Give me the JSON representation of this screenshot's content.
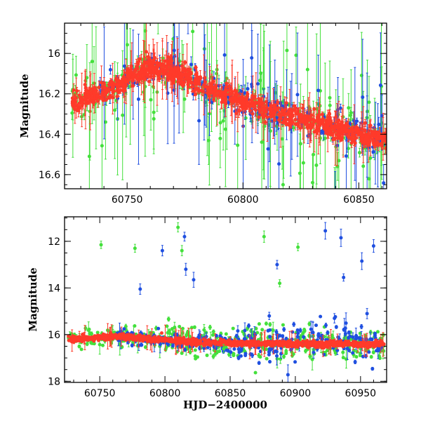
{
  "chart_data": [
    {
      "type": "scatter",
      "panel": "top",
      "xlabel": "",
      "ylabel": "Magnitude",
      "xlim": [
        60723,
        60862
      ],
      "ylim": [
        16.67,
        15.85
      ],
      "y_inverted": true,
      "x_ticks": [
        60750,
        60800,
        60850
      ],
      "x_tick_labels": [
        "60750",
        "60800",
        "60850"
      ],
      "y_ticks": [
        16.0,
        16.2,
        16.4,
        16.6
      ],
      "y_tick_labels": [
        "16",
        "16.2",
        "16.4",
        "16.6"
      ],
      "series": [
        {
          "name": "red",
          "color": "#ff3a2a",
          "description": "dense error-bar light curve",
          "trend": [
            [
              60726,
              16.25
            ],
            [
              60740,
              16.19
            ],
            [
              60750,
              16.13
            ],
            [
              60755,
              16.09
            ],
            [
              60762,
              16.06
            ],
            [
              60770,
              16.09
            ],
            [
              60780,
              16.15
            ],
            [
              60790,
              16.2
            ],
            [
              60800,
              16.24
            ],
            [
              60810,
              16.28
            ],
            [
              60820,
              16.31
            ],
            [
              60830,
              16.34
            ],
            [
              60840,
              16.37
            ],
            [
              60850,
              16.4
            ],
            [
              60862,
              16.43
            ]
          ]
        },
        {
          "name": "green",
          "color": "#44e03c",
          "description": "scattered points with large error bars",
          "trend": [
            [
              60726,
              16.24
            ],
            [
              60750,
              16.12
            ],
            [
              60762,
              16.06
            ],
            [
              60780,
              16.14
            ],
            [
              60800,
              16.23
            ],
            [
              60820,
              16.3
            ],
            [
              60840,
              16.36
            ],
            [
              60862,
              16.42
            ]
          ]
        },
        {
          "name": "blue",
          "color": "#1f4fe0",
          "description": "scattered points with error bars",
          "trend": [
            [
              60726,
              16.24
            ],
            [
              60750,
              16.12
            ],
            [
              60762,
              16.06
            ],
            [
              60780,
              16.14
            ],
            [
              60800,
              16.23
            ],
            [
              60820,
              16.3
            ],
            [
              60840,
              16.36
            ],
            [
              60862,
              16.42
            ]
          ]
        }
      ]
    },
    {
      "type": "scatter",
      "panel": "bottom",
      "xlabel": "HJD−2400000",
      "ylabel": "Magnitude",
      "xlim": [
        60723,
        60970
      ],
      "ylim": [
        18.05,
        10.95
      ],
      "y_inverted": true,
      "x_ticks": [
        60750,
        60800,
        60850,
        60900,
        60950
      ],
      "x_tick_labels": [
        "60750",
        "60800",
        "60850",
        "60900",
        "60950"
      ],
      "y_ticks": [
        12,
        14,
        16,
        18
      ],
      "y_tick_labels": [
        "12",
        "14",
        "16",
        "18"
      ],
      "series": [
        {
          "name": "red",
          "color": "#ff3a2a",
          "trend": [
            [
              60726,
              16.22
            ],
            [
              60750,
              16.12
            ],
            [
              60762,
              16.07
            ],
            [
              60780,
              16.15
            ],
            [
              60800,
              16.23
            ],
            [
              60820,
              16.3
            ],
            [
              60840,
              16.35
            ],
            [
              60860,
              16.38
            ],
            [
              60900,
              16.4
            ],
            [
              60930,
              16.4
            ],
            [
              60968,
              16.41
            ]
          ]
        },
        {
          "name": "green",
          "color": "#44e03c",
          "outliers": [
            [
              60751,
              12.15
            ],
            [
              60777,
              12.3
            ],
            [
              60813,
              12.4
            ],
            [
              60876,
              11.8
            ],
            [
              60902,
              12.25
            ],
            [
              60810,
              11.4
            ],
            [
              60830,
              15.8
            ],
            [
              60845,
              16.6
            ],
            [
              60888,
              13.8
            ]
          ]
        },
        {
          "name": "blue",
          "color": "#1f4fe0",
          "outliers": [
            [
              60798,
              12.4
            ],
            [
              60815,
              11.8
            ],
            [
              60816,
              13.2
            ],
            [
              60822,
              13.65
            ],
            [
              60781,
              14.05
            ],
            [
              60886,
              13.0
            ],
            [
              60923,
              11.55
            ],
            [
              60935,
              11.85
            ],
            [
              60937,
              13.55
            ],
            [
              60951,
              12.85
            ],
            [
              60960,
              12.2
            ],
            [
              60880,
              15.2
            ],
            [
              60930,
              15.3
            ],
            [
              60955,
              15.1
            ]
          ]
        }
      ]
    }
  ]
}
